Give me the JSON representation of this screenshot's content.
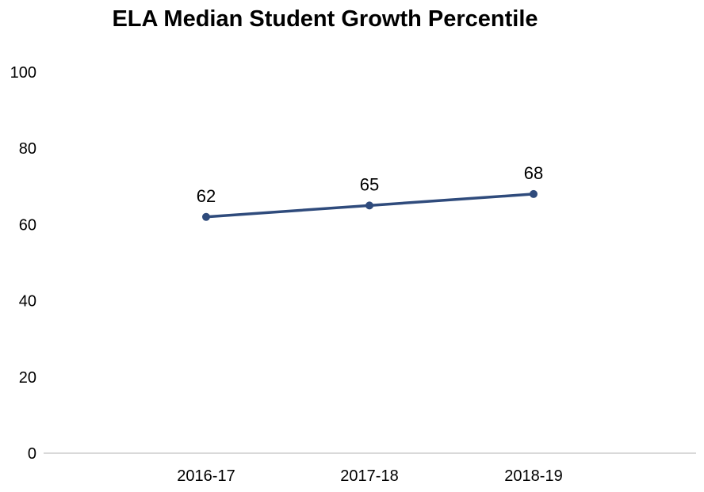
{
  "chart_data": {
    "type": "line",
    "title": "ELA Median Student Growth Percentile",
    "xlabel": "",
    "ylabel": "",
    "categories": [
      "2016-17",
      "2017-18",
      "2018-19"
    ],
    "series": [
      {
        "values": [
          62,
          65,
          68
        ],
        "color": "#2f4b7c"
      }
    ],
    "data_labels": [
      "62",
      "65",
      "68"
    ],
    "ylim": [
      0,
      100
    ],
    "y_ticks": [
      "0",
      "20",
      "40",
      "60",
      "80",
      "100"
    ],
    "grid": false,
    "legend": "none",
    "axis_color": "#d9d9d9"
  }
}
